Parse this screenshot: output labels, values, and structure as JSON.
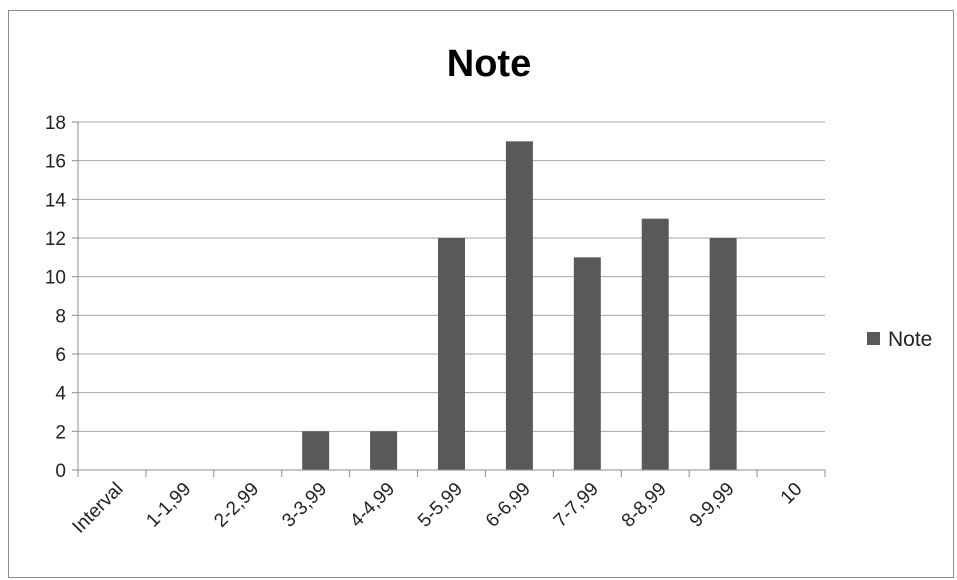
{
  "chart_data": {
    "type": "bar",
    "title": "Note",
    "categories": [
      "Interval",
      "1-1,99",
      "2-2,99",
      "3-3,99",
      "4-4,99",
      "5-5,99",
      "6-6,99",
      "7-7,99",
      "8-8,99",
      "9-9,99",
      "10"
    ],
    "series": [
      {
        "name": "Note",
        "values": [
          0,
          0,
          0,
          2,
          2,
          12,
          17,
          11,
          13,
          12,
          0
        ]
      }
    ],
    "ylim": [
      0,
      18
    ],
    "yticks": [
      0,
      2,
      4,
      6,
      8,
      10,
      12,
      14,
      16,
      18
    ],
    "grid": true,
    "legend_position": "right",
    "colors": {
      "bar": "#595959",
      "grid": "#a6a6a6",
      "axis": "#8c8c8c"
    }
  }
}
